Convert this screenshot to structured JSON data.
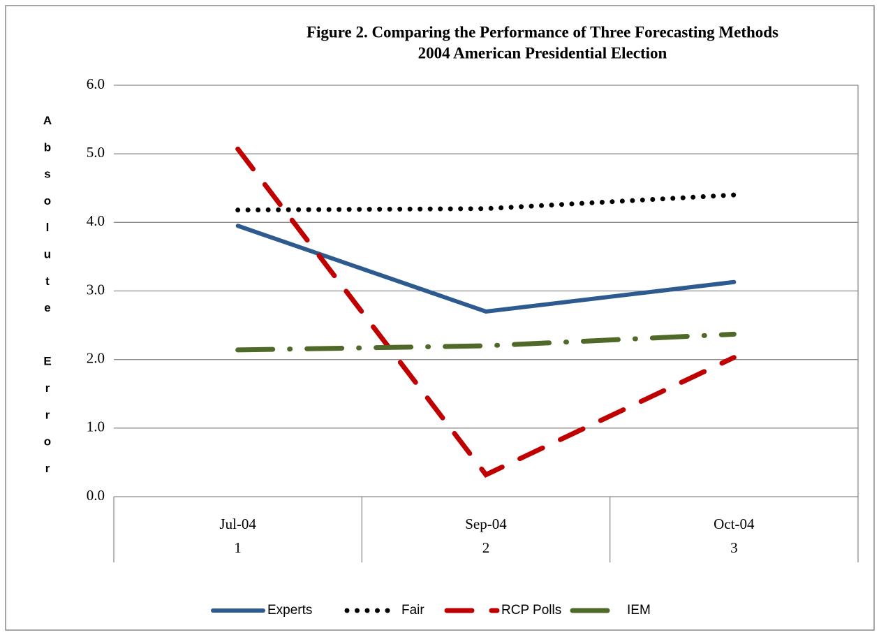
{
  "chart_data": {
    "type": "line",
    "title": "Figure 2.  Comparing  the Performance of Three Forecasting Methods",
    "subtitle": "2004 American Presidential Election",
    "y_label": "Absolute Error",
    "categories": [
      "Jul-04",
      "Sep-04",
      "Oct-04"
    ],
    "category_numbers": [
      "1",
      "2",
      "3"
    ],
    "series": [
      {
        "name": "Experts",
        "color": "#2e5b8f",
        "style": "solid",
        "values": [
          3.95,
          2.7,
          3.13
        ]
      },
      {
        "name": "Fair",
        "color": "#000000",
        "style": "dot",
        "values": [
          4.18,
          4.2,
          4.4
        ]
      },
      {
        "name": "RCP Polls",
        "color": "#c00000",
        "style": "dash",
        "values": [
          5.07,
          0.32,
          2.03
        ]
      },
      {
        "name": "IEM",
        "color": "#4f6a28",
        "style": "dashdot",
        "values": [
          2.14,
          2.2,
          2.37
        ]
      }
    ],
    "ylim": [
      0,
      6
    ],
    "yticks": [
      {
        "value": 0,
        "label": "0.0"
      },
      {
        "value": 1,
        "label": "1.0"
      },
      {
        "value": 2,
        "label": "2.0"
      },
      {
        "value": 3,
        "label": "3.0"
      },
      {
        "value": 4,
        "label": "4.0"
      },
      {
        "value": 5,
        "label": "5.0"
      },
      {
        "value": 6,
        "label": "6.0"
      }
    ],
    "grid": true,
    "legend": "bottom"
  }
}
